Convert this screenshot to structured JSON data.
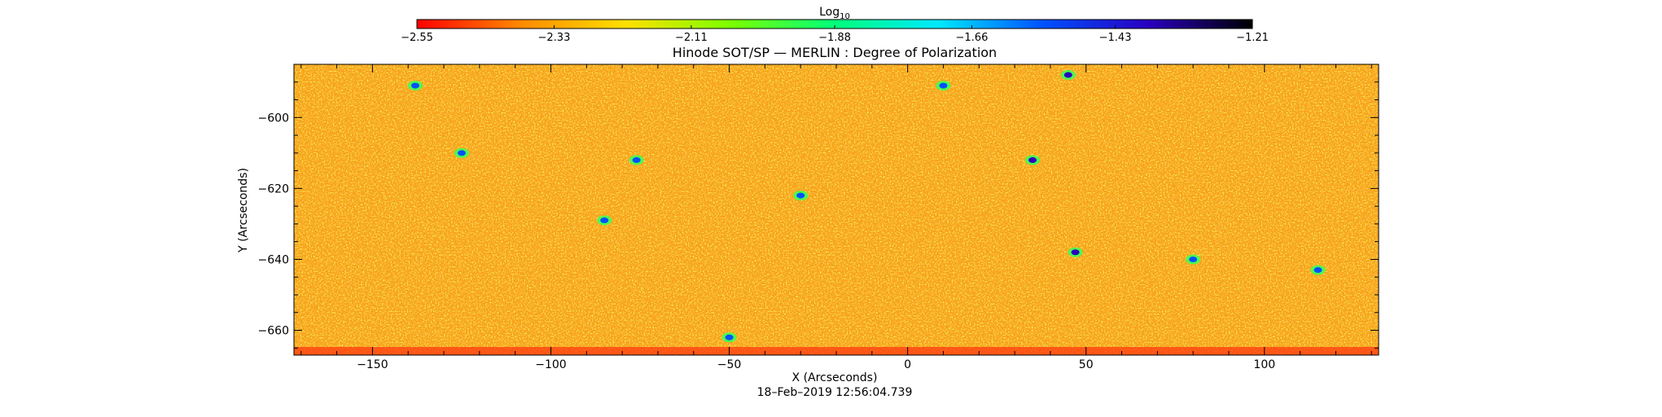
{
  "chart_data": {
    "type": "heatmap",
    "title": "Hinode SOT/SP — MERLIN : Degree of Polarization",
    "xlabel": "X (Arcseconds)",
    "ylabel": "Y (Arcseconds)",
    "xlim": [
      -172,
      132
    ],
    "ylim": [
      -667,
      -585
    ],
    "x_ticks": [
      -150,
      -100,
      -50,
      0,
      50,
      100
    ],
    "x_tick_labels": [
      "−150",
      "−100",
      "−50",
      "0",
      "50",
      "100"
    ],
    "y_ticks": [
      -600,
      -620,
      -640,
      -660
    ],
    "y_tick_labels": [
      "−600",
      "−620",
      "−640",
      "−660"
    ],
    "colorbar": {
      "label_base": "Log",
      "label_sub": "10",
      "range": [
        -2.55,
        -1.21
      ],
      "ticks": [
        -2.55,
        -2.33,
        -2.11,
        -1.88,
        -1.66,
        -1.43,
        -1.21
      ],
      "tick_labels": [
        "−2.55",
        "−2.33",
        "−2.11",
        "−1.88",
        "−1.66",
        "−1.43",
        "−1.21"
      ],
      "colormap": [
        "#ff0000",
        "#ff8a00",
        "#ffe000",
        "#7cff00",
        "#00ff7a",
        "#00e8ff",
        "#0050ff",
        "#2a00c0",
        "#000000"
      ]
    },
    "grid": false,
    "legend": "none",
    "dominant_range": [
      -2.5,
      -2.2
    ],
    "features": [
      {
        "x": 35,
        "y": -612,
        "v": -1.5
      },
      {
        "x": 47,
        "y": -638,
        "v": -1.5
      },
      {
        "x": 80,
        "y": -640,
        "v": -1.6
      },
      {
        "x": -85,
        "y": -629,
        "v": -1.6
      },
      {
        "x": -76,
        "y": -612,
        "v": -1.6
      },
      {
        "x": 45,
        "y": -588,
        "v": -1.5
      },
      {
        "x": -125,
        "y": -610,
        "v": -1.6
      },
      {
        "x": -138,
        "y": -591,
        "v": -1.6
      },
      {
        "x": 10,
        "y": -591,
        "v": -1.7
      },
      {
        "x": -50,
        "y": -662,
        "v": -1.6
      },
      {
        "x": 115,
        "y": -643,
        "v": -1.6
      },
      {
        "x": -30,
        "y": -622,
        "v": -1.7
      }
    ]
  },
  "timestamp": "18–Feb–2019 12:56:04.739"
}
